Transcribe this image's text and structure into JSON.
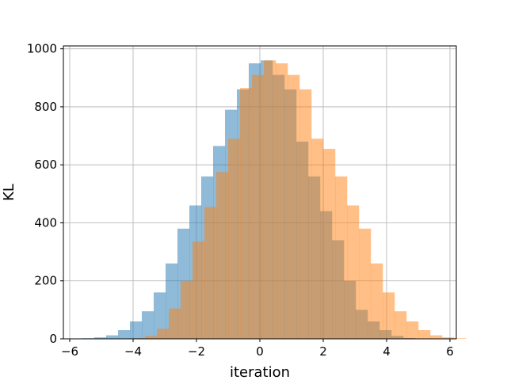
{
  "chart_data": {
    "type": "bar",
    "subtype": "overlapping-histogram",
    "xlabel": "iteration",
    "ylabel": "KL",
    "xlim": [
      -6.2,
      6.2
    ],
    "ylim": [
      0,
      1010
    ],
    "xticks": [
      -6,
      -4,
      -2,
      0,
      2,
      4,
      6
    ],
    "xtick_labels": [
      "−6",
      "−4",
      "−2",
      "0",
      "2",
      "4",
      "6"
    ],
    "yticks": [
      0,
      200,
      400,
      600,
      800,
      1000
    ],
    "ytick_labels": [
      "0",
      "200",
      "400",
      "600",
      "800",
      "1000"
    ],
    "grid": true,
    "legend": "none",
    "series": [
      {
        "color": "#1f77b4",
        "alpha": 0.5,
        "bin_start": -5.6,
        "bin_width": 0.375,
        "counts": [
          2,
          5,
          12,
          30,
          60,
          95,
          160,
          260,
          380,
          460,
          560,
          665,
          790,
          860,
          950,
          960,
          910,
          860,
          680,
          560,
          440,
          340,
          200,
          100,
          60,
          30,
          10,
          3
        ]
      },
      {
        "color": "#ff7f0e",
        "alpha": 0.5,
        "bin_start": -4.0,
        "bin_width": 0.375,
        "counts": [
          2,
          10,
          35,
          105,
          200,
          335,
          455,
          575,
          690,
          865,
          910,
          960,
          950,
          910,
          860,
          690,
          655,
          560,
          460,
          380,
          260,
          160,
          95,
          60,
          30,
          12,
          5,
          2
        ]
      }
    ]
  }
}
